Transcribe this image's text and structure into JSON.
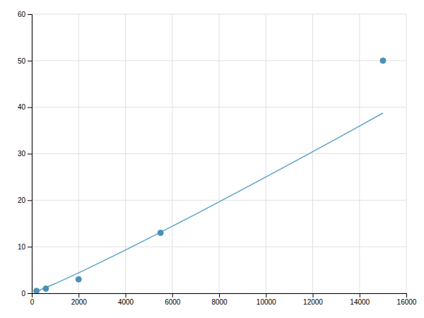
{
  "chart_data": {
    "type": "scatter",
    "series": [
      {
        "type": "line",
        "color": "#5ba3c9",
        "x": [
          200,
          1000,
          2000,
          3000,
          4000,
          5000,
          6000,
          7000,
          8000,
          9000,
          10000,
          11000,
          12000,
          13000,
          14000,
          15000
        ],
        "values": [
          0.37,
          2.08,
          4.39,
          6.81,
          9.29,
          11.82,
          14.4,
          17.0,
          19.64,
          22.31,
          25.0,
          27.71,
          30.44,
          33.18,
          35.95,
          38.73
        ]
      },
      {
        "type": "scatter",
        "color": "#4a90b8",
        "x": [
          200,
          600,
          2000,
          5500,
          15000
        ],
        "values": [
          0.5,
          1.0,
          3.0,
          13.0,
          50.0
        ]
      }
    ],
    "xlim": [
      0,
      16000
    ],
    "ylim": [
      0,
      60
    ],
    "xticks": [
      0,
      2000,
      4000,
      6000,
      8000,
      10000,
      12000,
      14000,
      16000
    ],
    "yticks": [
      0,
      10,
      20,
      30,
      40,
      50,
      60
    ],
    "grid": true
  }
}
